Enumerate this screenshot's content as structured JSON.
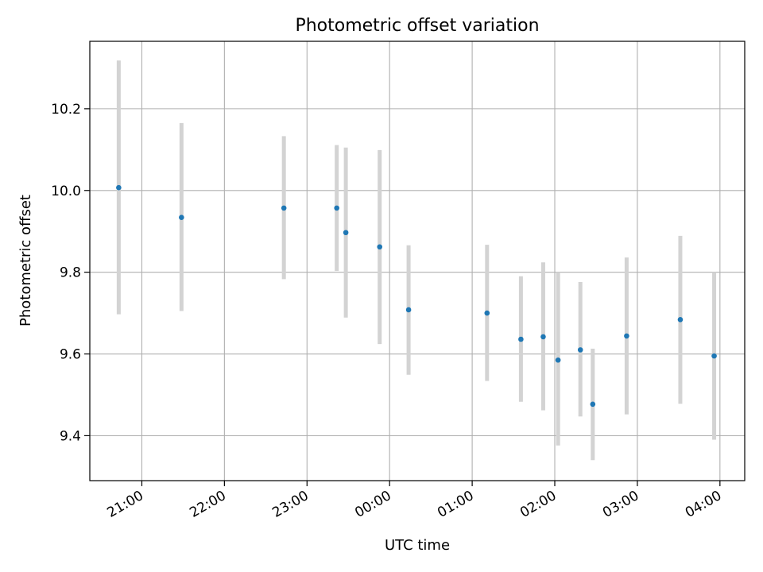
{
  "chart_data": {
    "type": "scatter",
    "title": "Photometric offset variation",
    "xlabel": "UTC time",
    "ylabel": "Photometric offset",
    "xlim_hours": [
      20.37,
      28.3
    ],
    "ylim": [
      9.29,
      10.365
    ],
    "x_ticks": [
      {
        "hour": 21,
        "label": "21:00"
      },
      {
        "hour": 22,
        "label": "22:00"
      },
      {
        "hour": 23,
        "label": "23:00"
      },
      {
        "hour": 24,
        "label": "00:00"
      },
      {
        "hour": 25,
        "label": "01:00"
      },
      {
        "hour": 26,
        "label": "02:00"
      },
      {
        "hour": 27,
        "label": "03:00"
      },
      {
        "hour": 28,
        "label": "04:00"
      }
    ],
    "y_ticks": [
      {
        "value": 9.4,
        "label": "9.4"
      },
      {
        "value": 9.6,
        "label": "9.6"
      },
      {
        "value": 9.8,
        "label": "9.8"
      },
      {
        "value": 10.0,
        "label": "10.0"
      },
      {
        "value": 10.2,
        "label": "10.2"
      }
    ],
    "grid": true,
    "colors": {
      "point": "#1f77b4",
      "errorbar": "#d3d3d3",
      "grid": "#b0b0b0",
      "axes": "#000000"
    },
    "points": [
      {
        "hour": 20.72,
        "y": 10.007,
        "low": 9.697,
        "high": 10.318
      },
      {
        "hour": 21.48,
        "y": 9.934,
        "low": 9.705,
        "high": 10.165
      },
      {
        "hour": 22.72,
        "y": 9.957,
        "low": 9.783,
        "high": 10.133
      },
      {
        "hour": 23.36,
        "y": 9.957,
        "low": 9.803,
        "high": 10.111
      },
      {
        "hour": 23.47,
        "y": 9.897,
        "low": 9.689,
        "high": 10.105
      },
      {
        "hour": 23.88,
        "y": 9.862,
        "low": 9.624,
        "high": 10.099
      },
      {
        "hour": 24.23,
        "y": 9.708,
        "low": 9.549,
        "high": 9.866
      },
      {
        "hour": 25.18,
        "y": 9.7,
        "low": 9.534,
        "high": 9.867
      },
      {
        "hour": 25.59,
        "y": 9.636,
        "low": 9.483,
        "high": 9.79
      },
      {
        "hour": 25.86,
        "y": 9.642,
        "low": 9.462,
        "high": 9.824
      },
      {
        "hour": 26.04,
        "y": 9.585,
        "low": 9.376,
        "high": 9.8
      },
      {
        "hour": 26.31,
        "y": 9.61,
        "low": 9.447,
        "high": 9.776
      },
      {
        "hour": 26.46,
        "y": 9.477,
        "low": 9.34,
        "high": 9.613
      },
      {
        "hour": 26.87,
        "y": 9.644,
        "low": 9.452,
        "high": 9.836
      },
      {
        "hour": 27.52,
        "y": 9.684,
        "low": 9.478,
        "high": 9.889
      },
      {
        "hour": 27.93,
        "y": 9.595,
        "low": 9.39,
        "high": 9.8
      }
    ]
  }
}
